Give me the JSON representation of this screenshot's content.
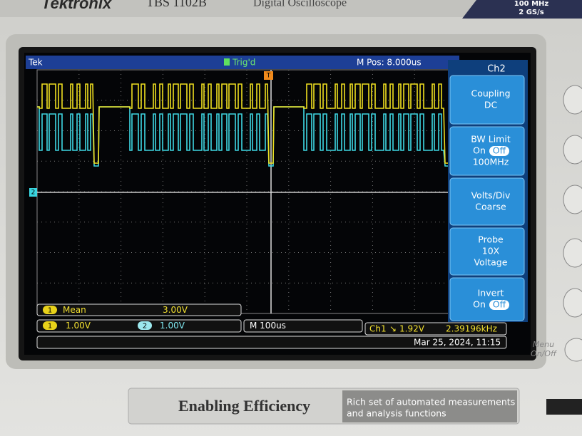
{
  "header": {
    "brand": "Tektronix",
    "model": "TBS 1102B",
    "description": "Digital Oscilloscope",
    "bandwidth": "100 MHz",
    "sample_rate": "2 GS/s"
  },
  "status_bar": {
    "logo": "Tek",
    "trigger_state": "Trig'd",
    "trigger_marker": "T",
    "position": "M Pos: 8.000us"
  },
  "markers": {
    "ch2_ground": "2"
  },
  "side_menu": {
    "title": "Ch2",
    "items": [
      {
        "label": "Coupling",
        "value": "DC"
      },
      {
        "label": "BW Limit",
        "on": "On",
        "off": "Off",
        "value": "100MHz"
      },
      {
        "label": "Volts/Div",
        "value": "Coarse"
      },
      {
        "label": "Probe",
        "value": "10X",
        "detail": "Voltage"
      },
      {
        "label": "Invert",
        "on": "On",
        "off": "Off"
      }
    ]
  },
  "measurement": {
    "channel": "1",
    "name": "Mean",
    "value": "3.00V"
  },
  "readout": {
    "ch1_badge": "1",
    "ch1_scale": "1.00V",
    "ch2_badge": "2",
    "ch2_scale": "1.00V",
    "timebase": "M 100us",
    "trigger_source": "Ch1",
    "trigger_slope": "↘",
    "trigger_level": "1.92V",
    "frequency": "2.39196kHz",
    "datetime": "Mar 25, 2024, 11:15"
  },
  "panel": {
    "menu_button": [
      "Menu",
      "On/Off"
    ]
  },
  "footer": {
    "slogan": "Enabling Efficiency",
    "tagline": [
      "Rich set of automated measurements",
      "and analysis functions"
    ]
  }
}
